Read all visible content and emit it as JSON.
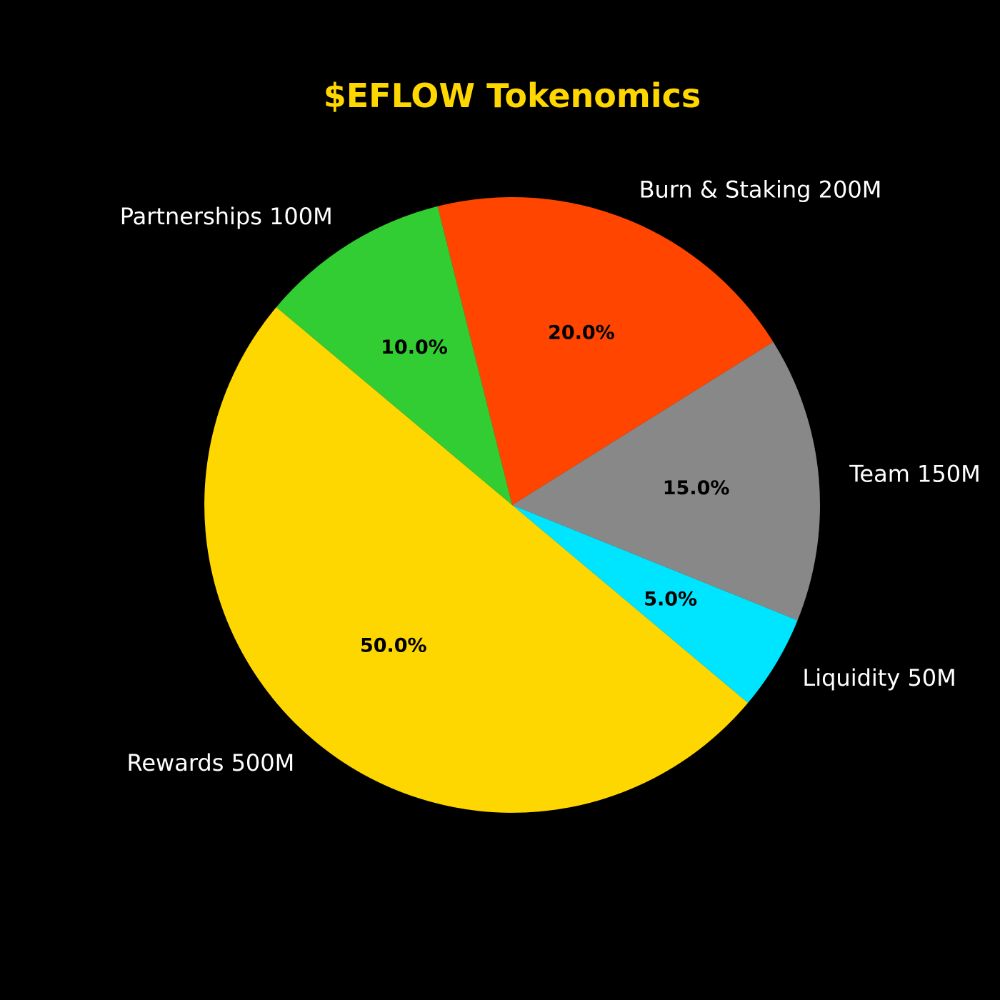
{
  "chart_data": {
    "type": "pie",
    "title": "$EFLOW Tokenomics",
    "title_color": "#FFD700",
    "background": "#000000",
    "start_angle_deg": 140,
    "direction": "counterclockwise",
    "slices": [
      {
        "label": "Rewards 500M",
        "value": 500,
        "percent_label": "50.0%",
        "color": "#FFD700"
      },
      {
        "label": "Liquidity 50M",
        "value": 50,
        "percent_label": "5.0%",
        "color": "#00E5FF"
      },
      {
        "label": "Team 150M",
        "value": 150,
        "percent_label": "15.0%",
        "color": "#888888"
      },
      {
        "label": "Burn & Staking 200M",
        "value": 200,
        "percent_label": "20.0%",
        "color": "#FF4500"
      },
      {
        "label": "Partnerships 100M",
        "value": 100,
        "percent_label": "10.0%",
        "color": "#32CD32"
      }
    ]
  }
}
